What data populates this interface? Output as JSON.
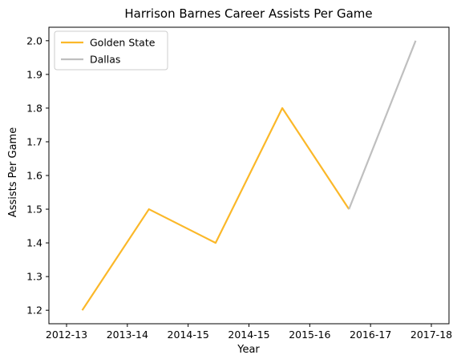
{
  "chart_data": {
    "type": "line",
    "title": "Harrison Barnes Career Assists Per Game",
    "xlabel": "Year",
    "ylabel": "Assists Per Game",
    "categories": [
      "2012-13",
      "2013-14",
      "2014-15",
      "2014-15",
      "2015-16",
      "2016-17",
      "2017-18"
    ],
    "yticks": [
      "1.2",
      "1.3",
      "1.4",
      "1.5",
      "1.6",
      "1.7",
      "1.8",
      "1.9",
      "2.0"
    ],
    "ylim": [
      1.16,
      2.04
    ],
    "grid": false,
    "legend_position": "top-left",
    "series": [
      {
        "name": "Golden State",
        "color": "#fbb829",
        "points": [
          [
            0,
            1.2
          ],
          [
            1,
            1.5
          ],
          [
            2,
            1.4
          ],
          [
            3,
            1.8
          ],
          [
            4,
            1.5
          ]
        ]
      },
      {
        "name": "Dallas",
        "color": "#bfbfbf",
        "points": [
          [
            4,
            1.5
          ],
          [
            5,
            2.0
          ]
        ]
      }
    ]
  }
}
